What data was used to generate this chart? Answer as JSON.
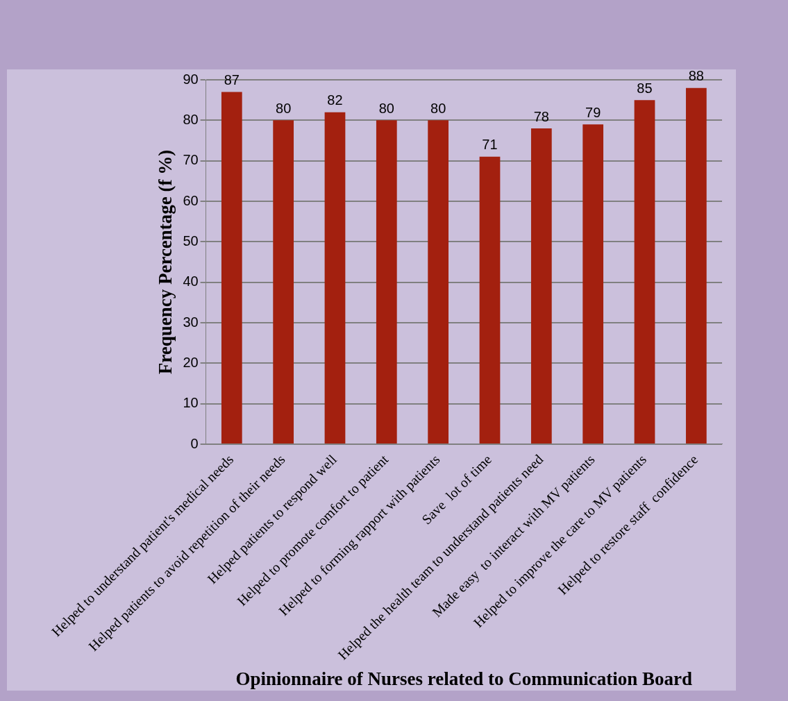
{
  "chart_data": {
    "type": "bar",
    "xlabel": "Opinionnaire of Nurses related to Communication Board",
    "ylabel": "Frequency Percentage (f %)",
    "categories": [
      "Helped to understand patient's medical needs",
      "Helped patients to avoid repetition of their needs",
      "Helped patients to respond well",
      "Helped to promote comfort to patient",
      "Helped to forming rapport with patients",
      "Save  lot of time",
      "Helped the health team to understand patients need",
      "Made easy  to interact with MV patients",
      "Helped to improve the care to MV patients",
      "Helped to restore staff  confidence"
    ],
    "values": [
      87,
      80,
      82,
      80,
      80,
      71,
      78,
      79,
      85,
      88
    ],
    "color": "#a3200f",
    "ylim": [
      0,
      90
    ],
    "yticks": [
      0,
      10,
      20,
      30,
      40,
      50,
      60,
      70,
      80,
      90
    ],
    "grid": "y",
    "data_labels": true,
    "legend": false
  }
}
